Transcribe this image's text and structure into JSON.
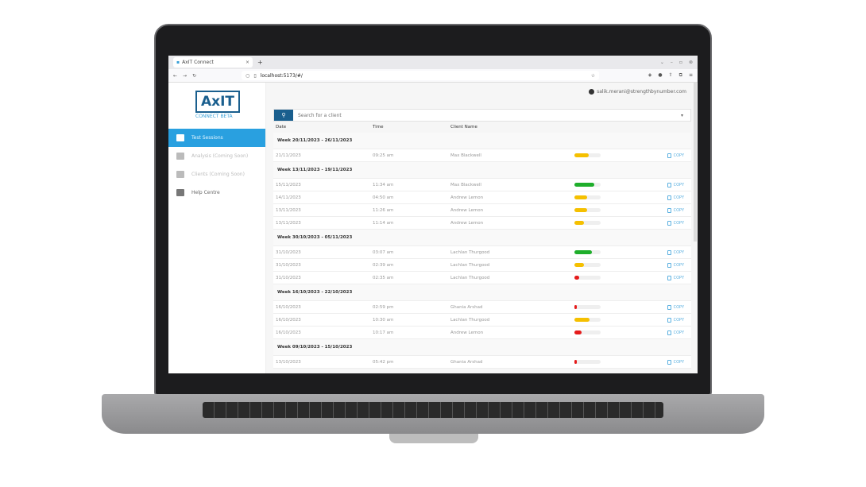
{
  "browser": {
    "tab_title": "AxIT Connect",
    "url": "localhost:5173/#/"
  },
  "app": {
    "logo": "AxIT",
    "logo_sub": "CONNECT BETA",
    "user_email": "salik.merani@strengthbynumber.com",
    "sidebar": [
      {
        "label": "Test Sessions",
        "icon": "document-icon",
        "active": true
      },
      {
        "label": "Analysis (Coming Soon)",
        "icon": "chart-icon",
        "active": false
      },
      {
        "label": "Clients (Coming Soon)",
        "icon": "users-icon",
        "active": false
      },
      {
        "label": "Help Centre",
        "icon": "book-icon",
        "active": false
      }
    ],
    "search_placeholder": "Search for a client",
    "columns": [
      "Date",
      "Time",
      "Client Name"
    ],
    "copy_label": "COPY",
    "colors": {
      "green": "#1fae2b",
      "yellow": "#f5c000",
      "red": "#e51b1b",
      "primary": "#1a5f8e",
      "accent": "#29a0e0"
    },
    "weeks": [
      {
        "label": "Week 20/11/2023 - 26/11/2023",
        "rows": [
          {
            "date": "21/11/2023",
            "time": "09:25 am",
            "client": "Max Blackwell",
            "score": 0.55,
            "color": "yellow"
          }
        ]
      },
      {
        "label": "Week 13/11/2023 - 19/11/2023",
        "rows": [
          {
            "date": "15/11/2023",
            "time": "11:34 am",
            "client": "Max Blackwell",
            "score": 0.77,
            "color": "green"
          },
          {
            "date": "14/11/2023",
            "time": "04:50 am",
            "client": "Andrew Lemon",
            "score": 0.48,
            "color": "yellow"
          },
          {
            "date": "13/11/2023",
            "time": "11:26 am",
            "client": "Andrew Lemon",
            "score": 0.48,
            "color": "yellow"
          },
          {
            "date": "13/11/2023",
            "time": "11:14 am",
            "client": "Andrew Lemon",
            "score": 0.36,
            "color": "yellow"
          }
        ]
      },
      {
        "label": "Week 30/10/2023 - 05/11/2023",
        "rows": [
          {
            "date": "31/10/2023",
            "time": "03:07 am",
            "client": "Lachlan Thurgood",
            "score": 0.67,
            "color": "green"
          },
          {
            "date": "31/10/2023",
            "time": "02:39 am",
            "client": "Lachlan Thurgood",
            "score": 0.36,
            "color": "yellow"
          },
          {
            "date": "31/10/2023",
            "time": "02:35 am",
            "client": "Lachlan Thurgood",
            "score": 0.18,
            "color": "red"
          }
        ]
      },
      {
        "label": "Week 16/10/2023 - 22/10/2023",
        "rows": [
          {
            "date": "16/10/2023",
            "time": "02:59 pm",
            "client": "Ghania Arshad",
            "score": 0.08,
            "color": "red"
          },
          {
            "date": "16/10/2023",
            "time": "10:30 am",
            "client": "Lachlan Thurgood",
            "score": 0.58,
            "color": "yellow"
          },
          {
            "date": "16/10/2023",
            "time": "10:17 am",
            "client": "Andrew Lemon",
            "score": 0.27,
            "color": "red"
          }
        ]
      },
      {
        "label": "Week 09/10/2023 - 15/10/2023",
        "rows": [
          {
            "date": "13/10/2023",
            "time": "05:42 pm",
            "client": "Ghania Arshad",
            "score": 0.08,
            "color": "red"
          }
        ]
      }
    ]
  }
}
